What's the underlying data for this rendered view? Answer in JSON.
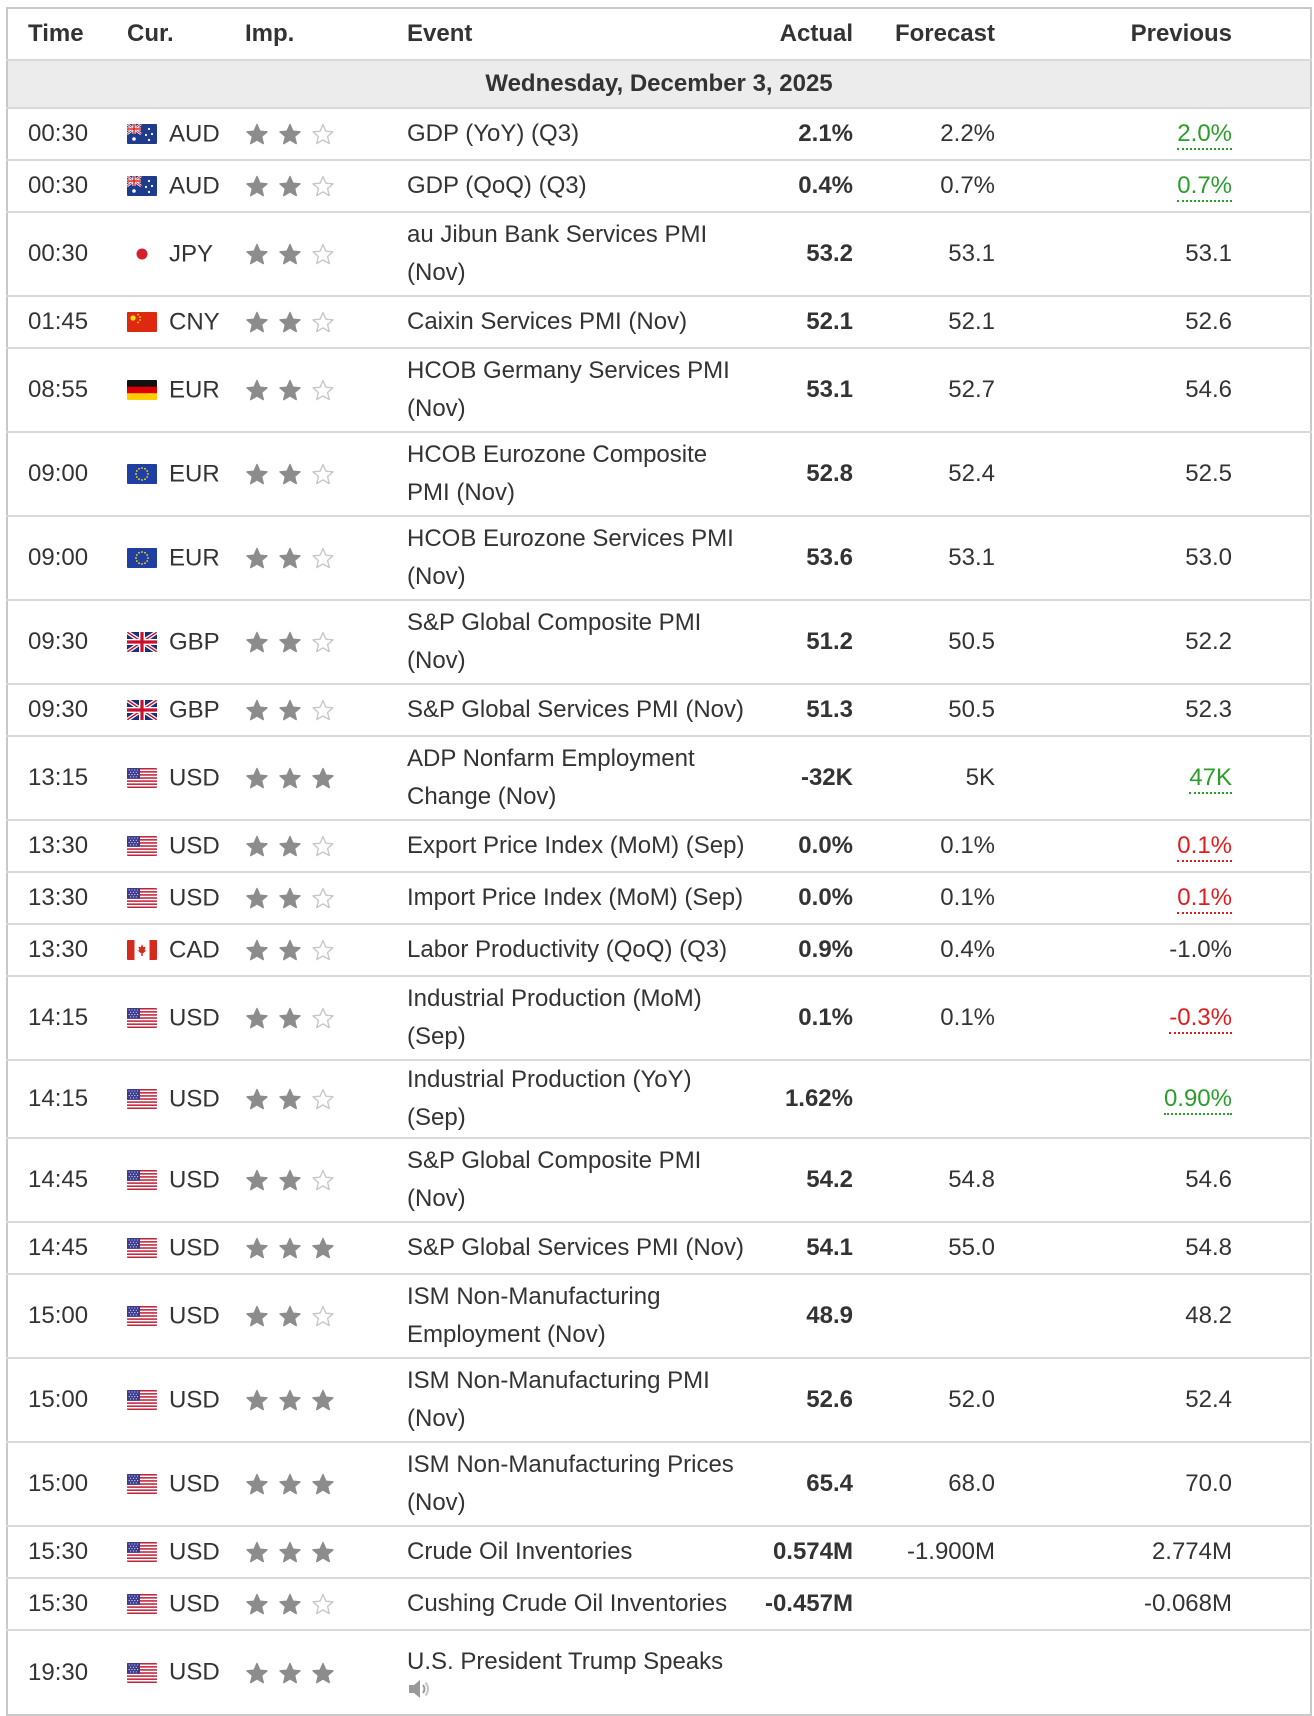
{
  "headers": {
    "time": "Time",
    "cur": "Cur.",
    "imp": "Imp.",
    "event": "Event",
    "actual": "Actual",
    "forecast": "Forecast",
    "previous": "Previous"
  },
  "day_label": "Wednesday, December 3, 2025",
  "colors": {
    "positive": "#2a9d2a",
    "negative": "#e01c1c",
    "star_filled": "#8c8c8c",
    "star_empty": "#c8c8c8"
  },
  "events": [
    {
      "time": "00:30",
      "flag": "australia-flag",
      "cur": "AUD",
      "stars": 2,
      "event": "GDP (YoY) (Q3)",
      "actual": "2.1%",
      "actual_class": "neg",
      "forecast": "2.2%",
      "previous": "2.0%",
      "previous_class": "pos",
      "revised": true,
      "rows": 1
    },
    {
      "time": "00:30",
      "flag": "australia-flag",
      "cur": "AUD",
      "stars": 2,
      "event": "GDP (QoQ) (Q3)",
      "actual": "0.4%",
      "actual_class": "neg",
      "forecast": "0.7%",
      "previous": "0.7%",
      "previous_class": "pos",
      "revised": true,
      "rows": 1
    },
    {
      "time": "00:30",
      "flag": "japan-flag",
      "cur": "JPY",
      "stars": 2,
      "event": "au Jibun Bank Services PMI (Nov)",
      "actual": "53.2",
      "actual_class": "pos",
      "forecast": "53.1",
      "previous": "53.1",
      "previous_class": "",
      "revised": false,
      "rows": 2
    },
    {
      "time": "01:45",
      "flag": "china-flag",
      "cur": "CNY",
      "stars": 2,
      "event": "Caixin Services PMI (Nov)",
      "actual": "52.1",
      "actual_class": "neu",
      "forecast": "52.1",
      "previous": "52.6",
      "previous_class": "",
      "revised": false,
      "rows": 1
    },
    {
      "time": "08:55",
      "flag": "germany-flag",
      "cur": "EUR",
      "stars": 2,
      "event": "HCOB Germany Services PMI (Nov)",
      "actual": "53.1",
      "actual_class": "pos",
      "forecast": "52.7",
      "previous": "54.6",
      "previous_class": "",
      "revised": false,
      "rows": 2
    },
    {
      "time": "09:00",
      "flag": "eu-flag",
      "cur": "EUR",
      "stars": 2,
      "event": "HCOB Eurozone Composite PMI (Nov)",
      "actual": "52.8",
      "actual_class": "pos",
      "forecast": "52.4",
      "previous": "52.5",
      "previous_class": "",
      "revised": false,
      "rows": 2
    },
    {
      "time": "09:00",
      "flag": "eu-flag",
      "cur": "EUR",
      "stars": 2,
      "event": "HCOB Eurozone Services PMI (Nov)",
      "actual": "53.6",
      "actual_class": "pos",
      "forecast": "53.1",
      "previous": "53.0",
      "previous_class": "",
      "revised": false,
      "rows": 2
    },
    {
      "time": "09:30",
      "flag": "uk-flag",
      "cur": "GBP",
      "stars": 2,
      "event": "S&P Global Composite PMI (Nov)",
      "actual": "51.2",
      "actual_class": "pos",
      "forecast": "50.5",
      "previous": "52.2",
      "previous_class": "",
      "revised": false,
      "rows": 2
    },
    {
      "time": "09:30",
      "flag": "uk-flag",
      "cur": "GBP",
      "stars": 2,
      "event": "S&P Global Services PMI (Nov)",
      "actual": "51.3",
      "actual_class": "pos",
      "forecast": "50.5",
      "previous": "52.3",
      "previous_class": "",
      "revised": false,
      "rows": 1
    },
    {
      "time": "13:15",
      "flag": "us-flag",
      "cur": "USD",
      "stars": 3,
      "event": "ADP Nonfarm Employment Change (Nov)",
      "actual": "-32K",
      "actual_class": "neg",
      "forecast": "5K",
      "previous": "47K",
      "previous_class": "pos",
      "revised": true,
      "rows": 2
    },
    {
      "time": "13:30",
      "flag": "us-flag",
      "cur": "USD",
      "stars": 2,
      "event": "Export Price Index (MoM) (Sep)",
      "actual": "0.0%",
      "actual_class": "neg",
      "forecast": "0.1%",
      "previous": "0.1%",
      "previous_class": "neg",
      "revised": true,
      "rows": 1
    },
    {
      "time": "13:30",
      "flag": "us-flag",
      "cur": "USD",
      "stars": 2,
      "event": "Import Price Index (MoM) (Sep)",
      "actual": "0.0%",
      "actual_class": "neg",
      "forecast": "0.1%",
      "previous": "0.1%",
      "previous_class": "neg",
      "revised": true,
      "rows": 1
    },
    {
      "time": "13:30",
      "flag": "canada-flag",
      "cur": "CAD",
      "stars": 2,
      "event": "Labor Productivity (QoQ) (Q3)",
      "actual": "0.9%",
      "actual_class": "pos",
      "forecast": "0.4%",
      "previous": "-1.0%",
      "previous_class": "",
      "revised": false,
      "rows": 1
    },
    {
      "time": "14:15",
      "flag": "us-flag",
      "cur": "USD",
      "stars": 2,
      "event": "Industrial Production (MoM) (Sep)",
      "actual": "0.1%",
      "actual_class": "neu",
      "forecast": "0.1%",
      "previous": "-0.3%",
      "previous_class": "neg",
      "revised": true,
      "rows": 2
    },
    {
      "time": "14:15",
      "flag": "us-flag",
      "cur": "USD",
      "stars": 2,
      "event": "Industrial Production (YoY) (Sep)",
      "actual": "1.62%",
      "actual_class": "neu",
      "forecast": "",
      "previous": "0.90%",
      "previous_class": "pos",
      "revised": true,
      "rows": 1
    },
    {
      "time": "14:45",
      "flag": "us-flag",
      "cur": "USD",
      "stars": 2,
      "event": "S&P Global Composite PMI (Nov)",
      "actual": "54.2",
      "actual_class": "neg",
      "forecast": "54.8",
      "previous": "54.6",
      "previous_class": "",
      "revised": false,
      "rows": 2
    },
    {
      "time": "14:45",
      "flag": "us-flag",
      "cur": "USD",
      "stars": 3,
      "event": "S&P Global Services PMI (Nov)",
      "actual": "54.1",
      "actual_class": "neg",
      "forecast": "55.0",
      "previous": "54.8",
      "previous_class": "",
      "revised": false,
      "rows": 1
    },
    {
      "time": "15:00",
      "flag": "us-flag",
      "cur": "USD",
      "stars": 2,
      "event": "ISM Non-Manufacturing Employment (Nov)",
      "actual": "48.9",
      "actual_class": "neu",
      "forecast": "",
      "previous": "48.2",
      "previous_class": "",
      "revised": false,
      "rows": 2
    },
    {
      "time": "15:00",
      "flag": "us-flag",
      "cur": "USD",
      "stars": 3,
      "event": "ISM Non-Manufacturing PMI (Nov)",
      "actual": "52.6",
      "actual_class": "pos",
      "forecast": "52.0",
      "previous": "52.4",
      "previous_class": "",
      "revised": false,
      "rows": 2
    },
    {
      "time": "15:00",
      "flag": "us-flag",
      "cur": "USD",
      "stars": 3,
      "event": "ISM Non-Manufacturing Prices (Nov)",
      "actual": "65.4",
      "actual_class": "neg",
      "forecast": "68.0",
      "previous": "70.0",
      "previous_class": "",
      "revised": false,
      "rows": 2
    },
    {
      "time": "15:30",
      "flag": "us-flag",
      "cur": "USD",
      "stars": 3,
      "event": "Crude Oil Inventories",
      "actual": "0.574M",
      "actual_class": "neg",
      "forecast": "-1.900M",
      "previous": "2.774M",
      "previous_class": "",
      "revised": false,
      "rows": 1
    },
    {
      "time": "15:30",
      "flag": "us-flag",
      "cur": "USD",
      "stars": 2,
      "event": "Cushing Crude Oil Inventories",
      "actual": "-0.457M",
      "actual_class": "neu",
      "forecast": "",
      "previous": "-0.068M",
      "previous_class": "",
      "revised": false,
      "rows": 1
    },
    {
      "time": "19:30",
      "flag": "us-flag",
      "cur": "USD",
      "stars": 3,
      "event": "U.S. President Trump Speaks",
      "actual": "",
      "actual_class": "neu",
      "forecast": "",
      "previous": "",
      "previous_class": "",
      "revised": false,
      "rows": 3,
      "speech": true,
      "speech_icon": "speaker-icon"
    }
  ]
}
